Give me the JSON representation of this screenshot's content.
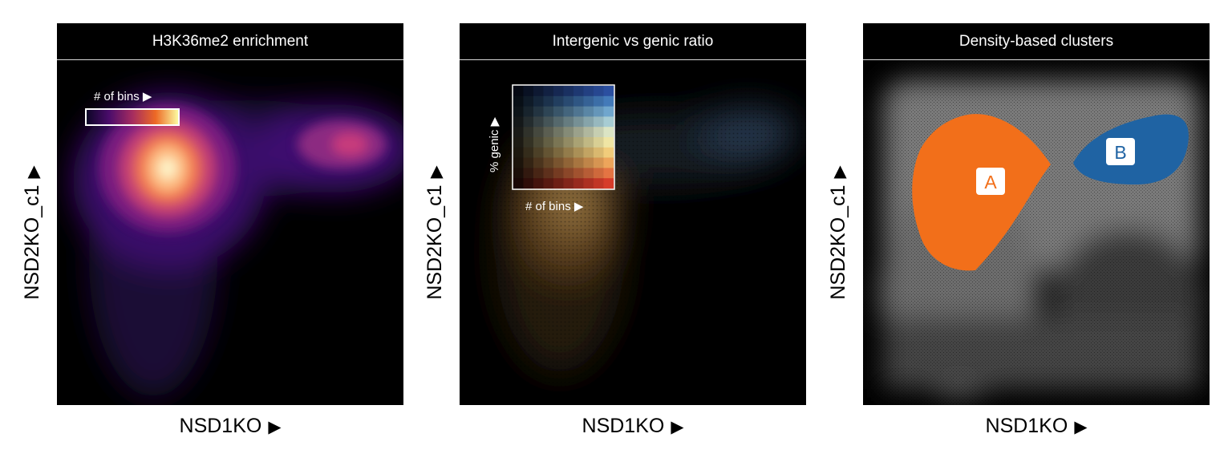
{
  "chart_data": [
    {
      "type": "density",
      "title": "H3K36me2 enrichment",
      "xlabel": "NSD1KO",
      "ylabel": "NSD2KO_c1",
      "axis_arrow": "▶",
      "grid": false,
      "legend": {
        "label": "# of bins ▶",
        "placement": "top-left",
        "colormap": "magma"
      },
      "annotations": []
    },
    {
      "type": "hexbin",
      "title": "Intergenic vs genic ratio",
      "xlabel": "NSD1KO",
      "ylabel": "NSD2KO_c1",
      "axis_arrow": "▶",
      "grid": false,
      "legend": {
        "xlabel": "# of bins ▶",
        "ylabel": "% genic ▶",
        "placement": "top-left",
        "colormap": "bivariate red-yellow-blue"
      },
      "annotations": []
    },
    {
      "type": "scatter-density",
      "title": "Density-based clusters",
      "xlabel": "NSD1KO",
      "ylabel": "NSD2KO_c1",
      "axis_arrow": "▶",
      "grid": false,
      "clusters": [
        {
          "label": "A",
          "color": "#f26f1a"
        },
        {
          "label": "B",
          "color": "#1f63a3"
        }
      ],
      "annotations": []
    }
  ],
  "colors": {
    "cluster_a": "#f26f1a",
    "cluster_b": "#1f63a3",
    "background": "#000000"
  }
}
